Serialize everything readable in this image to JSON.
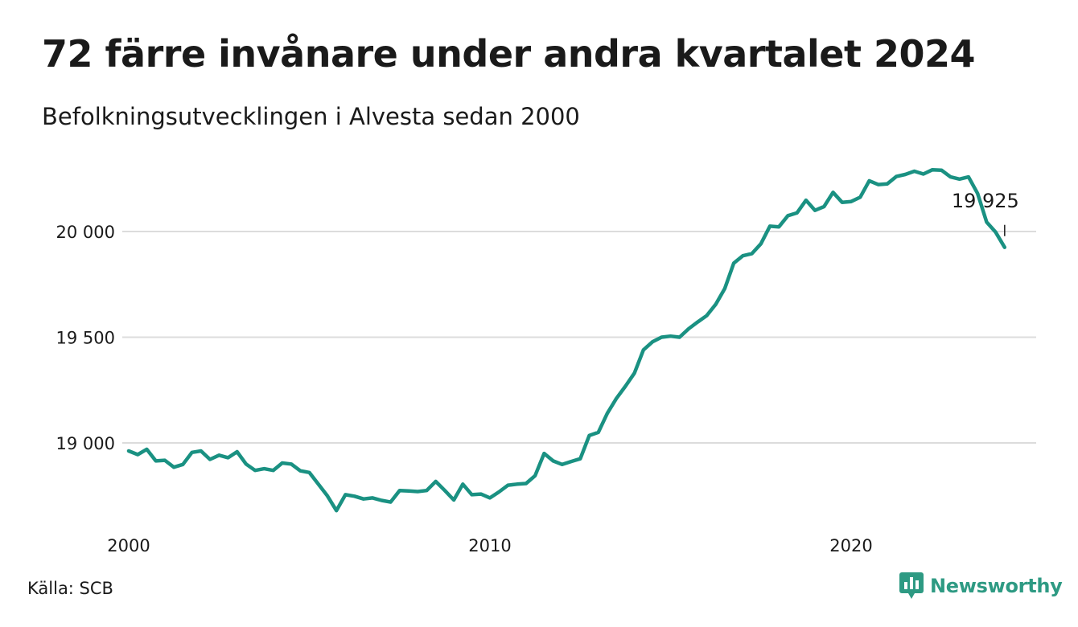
{
  "title": "72 färre invånare under andra kvartalet 2024",
  "subtitle": "Befolkningsutvecklingen i Alvesta sedan 2000",
  "source": "Källa: SCB",
  "brand": {
    "name": "Newsworthy",
    "icon": "newsworthy-logo-icon",
    "color": "#2e9a83"
  },
  "colors": {
    "line": "#1a9182",
    "grid": "#dcdcdc",
    "text": "#1a1a1a"
  },
  "chart_data": {
    "type": "line",
    "title": "72 färre invånare under andra kvartalet 2024",
    "subtitle": "Befolkningsutvecklingen i Alvesta sedan 2000",
    "xlabel": "",
    "ylabel": "",
    "grid": true,
    "x_start": "2000Q1",
    "x_ticks": [
      {
        "label": "2000",
        "value": 2000
      },
      {
        "label": "2010",
        "value": 2010
      },
      {
        "label": "2020",
        "value": 2020
      }
    ],
    "y_ticks": [
      {
        "label": "19 000",
        "value": 19000
      },
      {
        "label": "19 500",
        "value": 19500
      },
      {
        "label": "20 000",
        "value": 20000
      }
    ],
    "xlim": [
      2000,
      2024.5
    ],
    "ylim": [
      18640,
      20400
    ],
    "annotation": {
      "label": "19 925",
      "value": 19925,
      "x": "2024Q2"
    },
    "values": [
      18962,
      18945,
      18970,
      18915,
      18918,
      18885,
      18898,
      18955,
      18962,
      18922,
      18942,
      18930,
      18958,
      18900,
      18870,
      18878,
      18870,
      18905,
      18900,
      18868,
      18860,
      18805,
      18750,
      18680,
      18755,
      18748,
      18735,
      18740,
      18728,
      18720,
      18775,
      18773,
      18770,
      18775,
      18818,
      18775,
      18730,
      18805,
      18755,
      18758,
      18740,
      18768,
      18800,
      18805,
      18808,
      18845,
      18950,
      18915,
      18898,
      18912,
      18925,
      19035,
      19050,
      19140,
      19210,
      19268,
      19330,
      19440,
      19478,
      19500,
      19505,
      19500,
      19540,
      19572,
      19602,
      19655,
      19730,
      19850,
      19885,
      19895,
      19942,
      20025,
      20022,
      20075,
      20088,
      20148,
      20100,
      20118,
      20185,
      20138,
      20142,
      20162,
      20240,
      20222,
      20225,
      20260,
      20270,
      20285,
      20272,
      20292,
      20290,
      20258,
      20248,
      20258,
      20180,
      20045,
      19997,
      19925
    ]
  }
}
